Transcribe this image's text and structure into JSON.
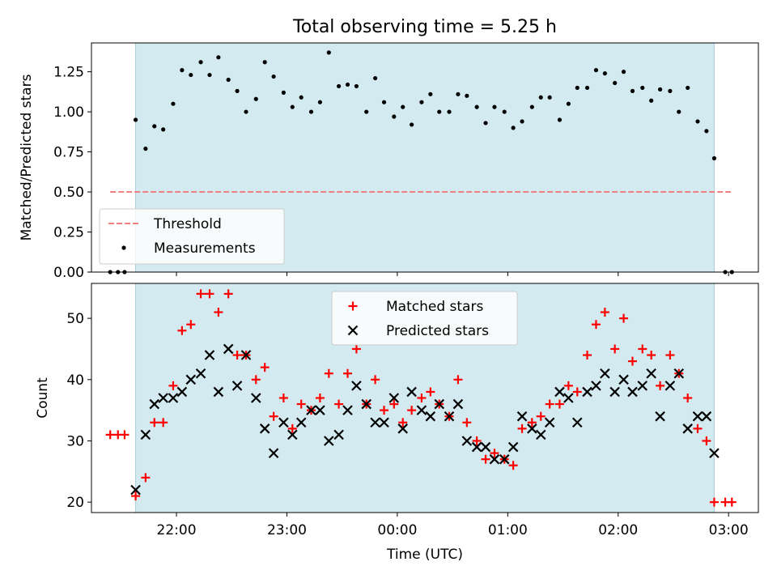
{
  "chart_data": [
    {
      "type": "scatter",
      "title": "Total observing time = 5.25 h",
      "ylabel": "Matched/Predicted stars",
      "xlabel": "",
      "x_unit": "hours since 00:00 UTC",
      "xlim": [
        -2.77,
        3.27
      ],
      "ylim": [
        0,
        1.43
      ],
      "yticks": [
        0.0,
        0.25,
        0.5,
        0.75,
        1.0,
        1.25
      ],
      "ytick_labels": [
        "0.00",
        "0.25",
        "0.50",
        "0.75",
        "1.00",
        "1.25"
      ],
      "observing_window": [
        -2.37,
        2.87
      ],
      "window_color": "#d4eaf1",
      "legend_location": "lower-left",
      "threshold": {
        "name": "Threshold",
        "y": 0.5,
        "x_range": [
          -2.6,
          3.02
        ],
        "color": "#f08080",
        "style": "dashed"
      },
      "series": [
        {
          "name": "Measurements",
          "marker": "dot",
          "color": "#000000",
          "x": [
            -2.6,
            -2.53,
            -2.47,
            -2.37,
            -2.28,
            -2.2,
            -2.12,
            -2.03,
            -1.95,
            -1.87,
            -1.78,
            -1.7,
            -1.62,
            -1.53,
            -1.45,
            -1.37,
            -1.28,
            -1.2,
            -1.12,
            -1.03,
            -0.95,
            -0.87,
            -0.78,
            -0.7,
            -0.62,
            -0.53,
            -0.45,
            -0.37,
            -0.28,
            -0.2,
            -0.12,
            -0.03,
            0.05,
            0.13,
            0.22,
            0.3,
            0.38,
            0.47,
            0.55,
            0.63,
            0.72,
            0.8,
            0.88,
            0.97,
            1.05,
            1.13,
            1.22,
            1.3,
            1.38,
            1.47,
            1.55,
            1.63,
            1.72,
            1.8,
            1.88,
            1.97,
            2.05,
            2.13,
            2.22,
            2.3,
            2.38,
            2.47,
            2.55,
            2.63,
            2.72,
            2.8,
            2.87,
            2.97,
            3.03
          ],
          "y": [
            0.0,
            0.0,
            0.0,
            0.95,
            0.77,
            0.91,
            0.89,
            1.05,
            1.26,
            1.23,
            1.31,
            1.23,
            1.34,
            1.2,
            1.13,
            1.0,
            1.08,
            1.31,
            1.22,
            1.12,
            1.03,
            1.09,
            1.0,
            1.06,
            1.37,
            1.16,
            1.17,
            1.16,
            1.0,
            1.21,
            1.06,
            0.97,
            1.03,
            0.92,
            1.06,
            1.11,
            1.0,
            1.0,
            1.11,
            1.1,
            1.03,
            0.93,
            1.03,
            1.0,
            0.9,
            0.94,
            1.03,
            1.09,
            1.09,
            0.95,
            1.05,
            1.15,
            1.15,
            1.26,
            1.24,
            1.18,
            1.25,
            1.13,
            1.15,
            1.07,
            1.14,
            1.13,
            1.0,
            1.15,
            0.94,
            0.88,
            0.71,
            0.0,
            0.0
          ]
        }
      ]
    },
    {
      "type": "scatter",
      "title": "",
      "ylabel": "Count",
      "xlabel": "Time (UTC)",
      "x_unit": "hours since 00:00 UTC",
      "xlim": [
        -2.77,
        3.27
      ],
      "ylim": [
        18.3,
        55.7
      ],
      "yticks": [
        20,
        30,
        40,
        50
      ],
      "ytick_labels": [
        "20",
        "30",
        "40",
        "50"
      ],
      "xticks": [
        -2,
        -1,
        0,
        1,
        2,
        3
      ],
      "xtick_labels": [
        "22:00",
        "23:00",
        "00:00",
        "01:00",
        "02:00",
        "03:00"
      ],
      "observing_window": [
        -2.37,
        2.87
      ],
      "window_color": "#d4eaf1",
      "legend_location": "upper-center",
      "series": [
        {
          "name": "Matched stars",
          "marker": "plus",
          "color": "#ff0000",
          "x": [
            -2.6,
            -2.53,
            -2.47,
            -2.37,
            -2.28,
            -2.2,
            -2.12,
            -2.03,
            -1.95,
            -1.87,
            -1.78,
            -1.7,
            -1.62,
            -1.53,
            -1.45,
            -1.37,
            -1.28,
            -1.2,
            -1.12,
            -1.03,
            -0.95,
            -0.87,
            -0.78,
            -0.7,
            -0.62,
            -0.53,
            -0.45,
            -0.37,
            -0.28,
            -0.2,
            -0.12,
            -0.03,
            0.05,
            0.13,
            0.22,
            0.3,
            0.38,
            0.47,
            0.55,
            0.63,
            0.72,
            0.8,
            0.88,
            0.97,
            1.05,
            1.13,
            1.22,
            1.3,
            1.38,
            1.47,
            1.55,
            1.63,
            1.72,
            1.8,
            1.88,
            1.97,
            2.05,
            2.13,
            2.22,
            2.3,
            2.38,
            2.47,
            2.55,
            2.63,
            2.72,
            2.8,
            2.87,
            2.97,
            3.03
          ],
          "y": [
            31,
            31,
            31,
            21,
            24,
            33,
            33,
            39,
            48,
            49,
            54,
            54,
            51,
            54,
            44,
            44,
            40,
            42,
            34,
            37,
            32,
            36,
            35,
            37,
            41,
            36,
            41,
            45,
            36,
            40,
            35,
            36,
            33,
            35,
            37,
            38,
            36,
            34,
            40,
            33,
            30,
            27,
            28,
            27,
            26,
            32,
            33,
            34,
            36,
            36,
            39,
            38,
            44,
            49,
            51,
            45,
            50,
            43,
            45,
            44,
            39,
            44,
            41,
            37,
            32,
            30,
            20,
            20,
            20
          ]
        },
        {
          "name": "Predicted stars",
          "marker": "x",
          "color": "#000000",
          "x": [
            -2.37,
            -2.28,
            -2.2,
            -2.12,
            -2.03,
            -1.95,
            -1.87,
            -1.78,
            -1.7,
            -1.62,
            -1.53,
            -1.45,
            -1.37,
            -1.28,
            -1.2,
            -1.12,
            -1.03,
            -0.95,
            -0.87,
            -0.78,
            -0.7,
            -0.62,
            -0.53,
            -0.45,
            -0.37,
            -0.28,
            -0.2,
            -0.12,
            -0.03,
            0.05,
            0.13,
            0.22,
            0.3,
            0.38,
            0.47,
            0.55,
            0.63,
            0.72,
            0.8,
            0.88,
            0.97,
            1.05,
            1.13,
            1.22,
            1.3,
            1.38,
            1.47,
            1.55,
            1.63,
            1.72,
            1.8,
            1.88,
            1.97,
            2.05,
            2.13,
            2.22,
            2.3,
            2.38,
            2.47,
            2.55,
            2.63,
            2.72,
            2.8,
            2.87
          ],
          "y": [
            22,
            31,
            36,
            37,
            37,
            38,
            40,
            41,
            44,
            38,
            45,
            39,
            44,
            37,
            32,
            28,
            33,
            31,
            33,
            35,
            35,
            30,
            31,
            35,
            39,
            36,
            33,
            33,
            37,
            32,
            38,
            35,
            34,
            36,
            34,
            36,
            30,
            29,
            29,
            27,
            27,
            29,
            34,
            32,
            31,
            33,
            38,
            37,
            33,
            38,
            39,
            41,
            38,
            40,
            38,
            39,
            41,
            34,
            39,
            41,
            32,
            34,
            34,
            28
          ]
        }
      ]
    }
  ]
}
